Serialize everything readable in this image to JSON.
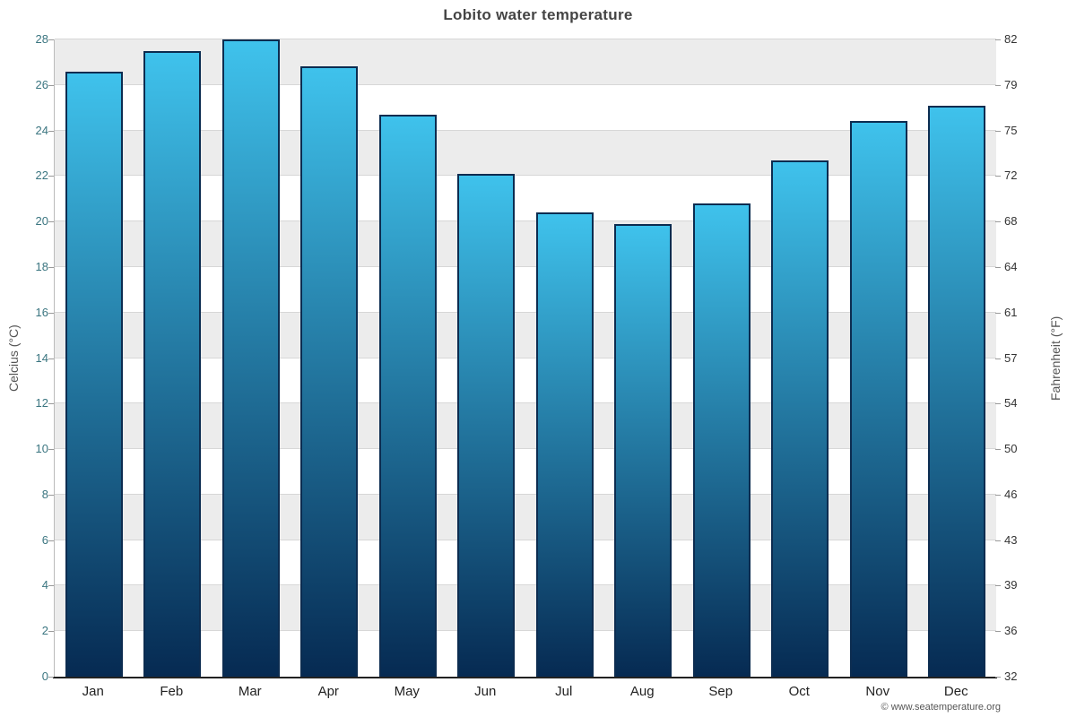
{
  "chart_data": {
    "type": "bar",
    "title": "Lobito water temperature",
    "categories": [
      "Jan",
      "Feb",
      "Mar",
      "Apr",
      "May",
      "Jun",
      "Jul",
      "Aug",
      "Sep",
      "Oct",
      "Nov",
      "Dec"
    ],
    "values": [
      26.6,
      27.5,
      28.0,
      26.8,
      24.7,
      22.1,
      20.4,
      19.9,
      20.8,
      22.7,
      24.4,
      25.1
    ],
    "series_name": "Water temperature (°C)",
    "xlabel": "",
    "ylabel_left": "Celcius (°C)",
    "ylabel_right": "Fahrenheit (°F)",
    "ylim": [
      0,
      28
    ],
    "yticks_left": [
      0,
      2,
      4,
      6,
      8,
      10,
      12,
      14,
      16,
      18,
      20,
      22,
      24,
      26,
      28
    ],
    "yticks_right": [
      "32",
      "36",
      "39",
      "43",
      "46",
      "50",
      "54",
      "57",
      "61",
      "64",
      "68",
      "72",
      "75",
      "79",
      "82"
    ],
    "grid": true,
    "legend": false,
    "background_bands": "alternating",
    "colors": {
      "bar_top": "#3fc2ec",
      "bar_bottom": "#062a52",
      "bar_border": "#0c2c50",
      "left_axis_text": "#3a7580",
      "right_axis_text": "#333333",
      "band_gray": "#ececec",
      "title_text": "#444444"
    }
  },
  "footer": {
    "text": "© www.seatemperature.org"
  }
}
